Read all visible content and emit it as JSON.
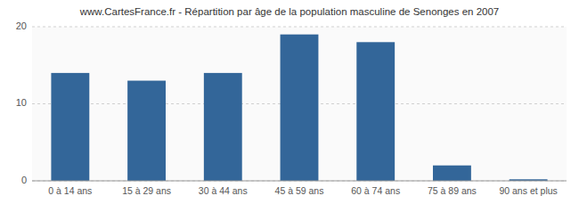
{
  "chart_data": {
    "type": "bar",
    "title": "www.CartesFrance.fr - Répartition par âge de la population masculine de Senonges en 2007",
    "categories": [
      "0 à 14 ans",
      "15 à 29 ans",
      "30 à 44 ans",
      "45 à 59 ans",
      "60 à 74 ans",
      "75 à 89 ans",
      "90 ans et plus"
    ],
    "values": [
      14,
      13,
      14,
      19,
      18,
      2,
      0.2
    ],
    "color": "#336699",
    "ylim": [
      0,
      20
    ],
    "yticks": [
      0,
      10,
      20
    ],
    "grid": true
  }
}
